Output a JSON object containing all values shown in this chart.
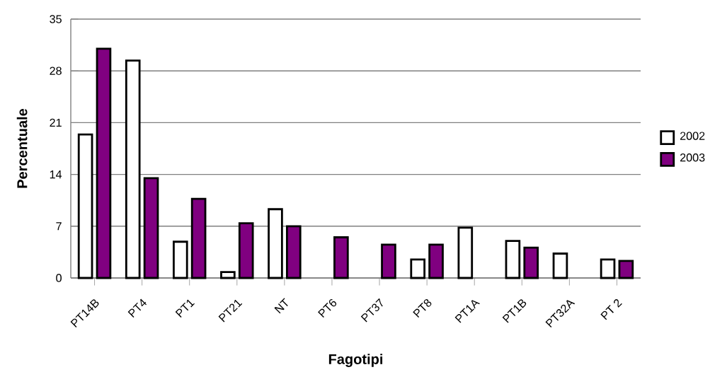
{
  "chart_data": {
    "type": "bar",
    "xlabel": "Fagotipi",
    "ylabel": "Percentuale",
    "categories": [
      "PT14B",
      "PT4",
      "PT1",
      "PT21",
      "NT",
      "PT6",
      "PT37",
      "PT8",
      "PT1A",
      "PT1B",
      "PT32A",
      "PT 2"
    ],
    "series": [
      {
        "name": "2002",
        "color": "#ffffff",
        "values": [
          19.4,
          29.4,
          4.9,
          0.8,
          9.3,
          null,
          null,
          2.5,
          6.8,
          5.0,
          3.3,
          2.5
        ]
      },
      {
        "name": "2003",
        "color": "#800080",
        "values": [
          31.0,
          13.5,
          10.7,
          7.4,
          7.0,
          5.5,
          4.5,
          4.5,
          null,
          4.1,
          null,
          2.3
        ]
      }
    ],
    "ylim": [
      0,
      35
    ],
    "yticks": [
      0,
      7,
      14,
      21,
      28,
      35
    ],
    "grid": "y",
    "legend": "right"
  }
}
